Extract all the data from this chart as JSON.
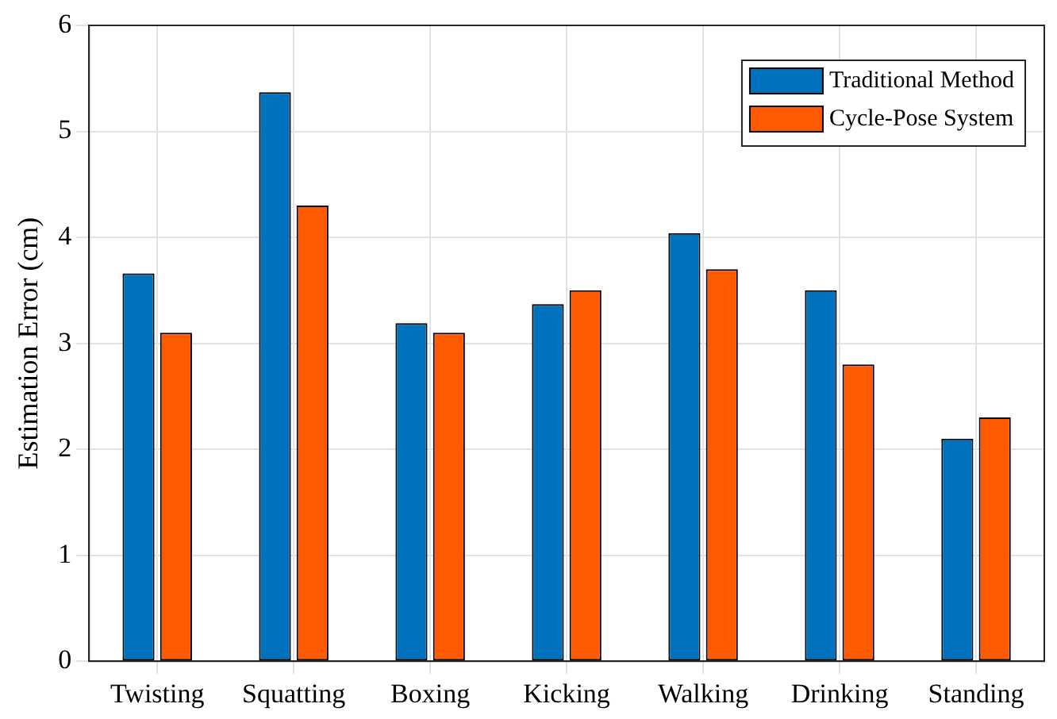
{
  "chart_data": {
    "type": "bar",
    "ylabel": "Estimation Error (cm)",
    "categories": [
      "Twisting",
      "Squatting",
      "Boxing",
      "Kicking",
      "Walking",
      "Drinking",
      "Standing"
    ],
    "series": [
      {
        "name": "Traditional Method",
        "color": "#0072bd",
        "values": [
          3.66,
          5.37,
          3.19,
          3.37,
          4.04,
          3.5,
          2.1
        ]
      },
      {
        "name": "Cycle-Pose System",
        "color": "#ff5a00",
        "values": [
          3.1,
          4.3,
          3.1,
          3.5,
          3.7,
          2.8,
          2.3
        ]
      }
    ],
    "ylim": [
      0,
      6
    ],
    "yticks": [
      0,
      1,
      2,
      3,
      4,
      5,
      6
    ],
    "grid": true,
    "legend": "top right"
  }
}
